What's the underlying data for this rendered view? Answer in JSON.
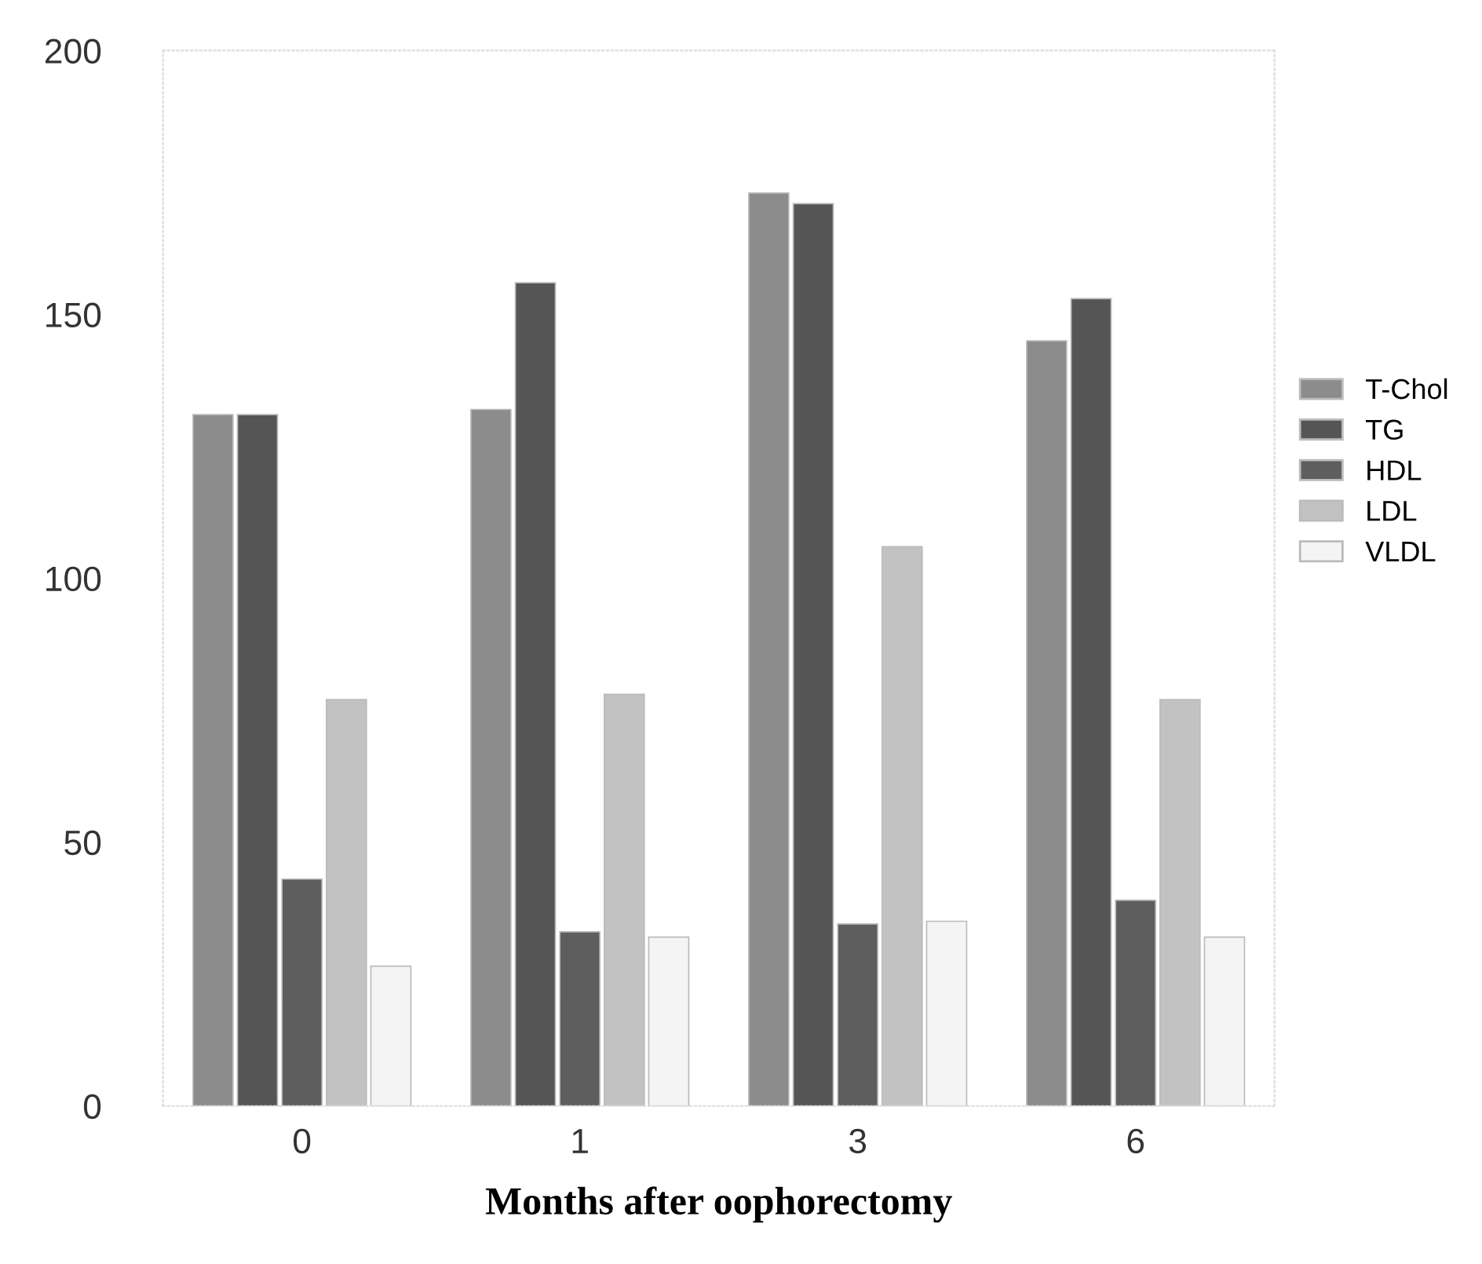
{
  "chart_data": {
    "type": "bar",
    "xlabel": "Months after oophorectomy",
    "categories": [
      "0",
      "1",
      "3",
      "6"
    ],
    "series": [
      {
        "name": "T-Chol",
        "color": "#8c8c8c",
        "values": [
          131,
          132,
          173,
          145
        ]
      },
      {
        "name": "TG",
        "color": "#555555",
        "values": [
          131,
          156,
          171,
          153
        ]
      },
      {
        "name": "HDL",
        "color": "#5e5e5e",
        "values": [
          43,
          33,
          34.5,
          39
        ]
      },
      {
        "name": "LDL",
        "color": "#c2c2c2",
        "values": [
          77,
          78,
          106,
          77
        ]
      },
      {
        "name": "VLDL",
        "color": "#f4f4f4",
        "values": [
          26.5,
          32,
          35,
          32
        ]
      }
    ],
    "ylim": [
      0,
      200
    ],
    "yticks": [
      0,
      50,
      100,
      150,
      200
    ],
    "grid": false,
    "legend": "right"
  }
}
